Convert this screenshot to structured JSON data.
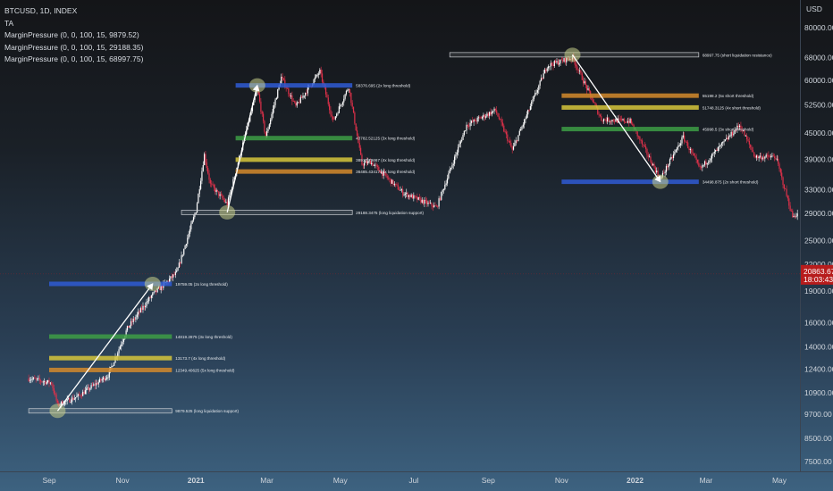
{
  "legend": {
    "symbol": "BTCUSD, 1D, INDEX",
    "indicator_ta": "TA",
    "margin_pressure": [
      "MarginPressure (0, 0, 100, 15, 9879.52)",
      "MarginPressure (0, 0, 100, 15, 29188.35)",
      "MarginPressure (0, 0, 100, 15, 68997.75)"
    ]
  },
  "colors": {
    "candle_up": "#ffffff",
    "candle_down": "#e0314a",
    "blue_level": "#2f5bd4",
    "green_level": "#3d9e45",
    "yellow_level": "#d6c53b",
    "orange_level": "#d38a2c",
    "white_level": "#c9cdd2",
    "arrow": "#ffffff",
    "circle": "#c8cf8a",
    "price_tag": "#b71c1c"
  },
  "chart_data": {
    "type": "candlestick",
    "title": "BTCUSD, 1D, INDEX",
    "y_scale": "log",
    "ylim": [
      6900,
      90000
    ],
    "y_axis_label": "USD",
    "y_ticks": [
      "80000.00",
      "68000.00",
      "60000.00",
      "52500.00",
      "45000.00",
      "39000.00",
      "33000.00",
      "29000.00",
      "25000.00",
      "22000.00",
      "19000.00",
      "16000.00",
      "14000.00",
      "12400.00",
      "10900.00",
      "9700.00",
      "8500.00",
      "7500.00"
    ],
    "x_ticks": [
      "Sep",
      "Nov",
      "2021",
      "Mar",
      "May",
      "Jul",
      "Sep",
      "Nov",
      "2022",
      "Mar",
      "May"
    ],
    "price_tag": {
      "value": "20863.67",
      "countdown": "18:03:43"
    },
    "level_groups": [
      {
        "levels": [
          {
            "value": 19759.05,
            "label": "19759.05 (2x long threshold)",
            "color": "blue"
          },
          {
            "value": 14819.2875,
            "label": "14819.2875 (3x long threshold)",
            "color": "green"
          },
          {
            "value": 13173.7,
            "label": "13173.7 (4x long threshold)",
            "color": "yellow"
          },
          {
            "value": 12349.40625,
            "label": "12349.40625 (5x long threshold)",
            "color": "orange"
          },
          {
            "value": 9879.525,
            "label": "9879.525 (long liquidation support)",
            "color": "white"
          }
        ]
      },
      {
        "levels": [
          {
            "value": 58376.695,
            "label": "58376.695 (2x long threshold)",
            "color": "blue"
          },
          {
            "value": 43782.52125,
            "label": "43782.52125 (3x long threshold)",
            "color": "green"
          },
          {
            "value": 38917.79667,
            "label": "38917.79667 (4x long threshold)",
            "color": "yellow"
          },
          {
            "value": 36485.43417,
            "label": "36485.43417 (5x long threshold)",
            "color": "orange"
          },
          {
            "value": 29188.3475,
            "label": "29188.3475 (long liquidation support)",
            "color": "white"
          }
        ]
      },
      {
        "levels": [
          {
            "value": 68997.75,
            "label": "68997.75 (short liquidation resistance)",
            "color": "white"
          },
          {
            "value": 55198.2,
            "label": "55198.2 (5x short threshold)",
            "color": "orange"
          },
          {
            "value": 51748.3125,
            "label": "51748.3125 (4x short threshold)",
            "color": "yellow"
          },
          {
            "value": 45998.5,
            "label": "45998.5 (3x short threshold)",
            "color": "green"
          },
          {
            "value": 34498.875,
            "label": "34498.875 (2x short threshold)",
            "color": "blue"
          }
        ]
      }
    ],
    "price_path": [
      [
        "2020-08-15",
        11800
      ],
      [
        "2020-09-03",
        11500
      ],
      [
        "2020-09-08",
        10200
      ],
      [
        "2020-09-25",
        10700
      ],
      [
        "2020-10-20",
        12000
      ],
      [
        "2020-11-05",
        15500
      ],
      [
        "2020-11-25",
        18500
      ],
      [
        "2020-12-16",
        21000
      ],
      [
        "2021-01-01",
        29500
      ],
      [
        "2021-01-08",
        40000
      ],
      [
        "2021-01-13",
        34000
      ],
      [
        "2021-01-27",
        30500
      ],
      [
        "2021-02-21",
        57500
      ],
      [
        "2021-02-28",
        44000
      ],
      [
        "2021-03-13",
        61000
      ],
      [
        "2021-03-25",
        52000
      ],
      [
        "2021-04-14",
        63000
      ],
      [
        "2021-04-25",
        48000
      ],
      [
        "2021-05-08",
        58000
      ],
      [
        "2021-05-19",
        38000
      ],
      [
        "2021-05-26",
        38500
      ],
      [
        "2021-06-22",
        32500
      ],
      [
        "2021-07-20",
        30000
      ],
      [
        "2021-08-14",
        47000
      ],
      [
        "2021-09-07",
        51000
      ],
      [
        "2021-09-21",
        41000
      ],
      [
        "2021-10-20",
        65000
      ],
      [
        "2021-11-10",
        68000
      ],
      [
        "2021-12-04",
        48500
      ],
      [
        "2021-12-28",
        48000
      ],
      [
        "2022-01-22",
        35000
      ],
      [
        "2022-02-10",
        44000
      ],
      [
        "2022-02-24",
        37000
      ],
      [
        "2022-03-29",
        47000
      ],
      [
        "2022-04-11",
        39500
      ],
      [
        "2022-04-28",
        39500
      ],
      [
        "2022-05-12",
        28500
      ],
      [
        "2022-05-20",
        29500
      ]
    ],
    "arrows": [
      {
        "from": [
          "2020-09-08",
          9879.525
        ],
        "to": [
          "2020-11-26",
          19759.05
        ]
      },
      {
        "from": [
          "2021-01-27",
          29188.3475
        ],
        "to": [
          "2021-02-21",
          58376.695
        ]
      },
      {
        "from": [
          "2021-11-10",
          68997.75
        ],
        "to": [
          "2022-01-22",
          34498.875
        ]
      }
    ]
  }
}
